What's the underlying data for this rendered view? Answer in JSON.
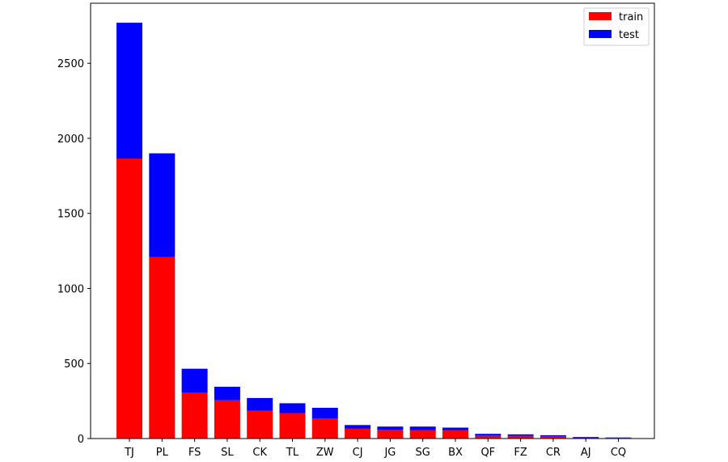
{
  "chart_data": {
    "type": "bar",
    "stacked": true,
    "title": "",
    "xlabel": "",
    "ylabel": "",
    "categories": [
      "TJ",
      "PL",
      "FS",
      "SL",
      "CK",
      "TL",
      "ZW",
      "CJ",
      "JG",
      "SG",
      "BX",
      "QF",
      "FZ",
      "CR",
      "AJ",
      "CQ"
    ],
    "series": [
      {
        "name": "train",
        "color": "#ff0000",
        "values": [
          1865,
          1210,
          305,
          255,
          185,
          170,
          135,
          65,
          58,
          55,
          55,
          18,
          18,
          16,
          7,
          4
        ]
      },
      {
        "name": "test",
        "color": "#0000ff",
        "values": [
          905,
          690,
          160,
          90,
          85,
          65,
          70,
          25,
          22,
          25,
          18,
          13,
          10,
          6,
          4,
          3
        ]
      }
    ],
    "ylim": [
      0,
      2900
    ],
    "yticks": [
      0,
      500,
      1000,
      1500,
      2000,
      2500
    ],
    "grid": false,
    "legend_position": "top-right"
  }
}
